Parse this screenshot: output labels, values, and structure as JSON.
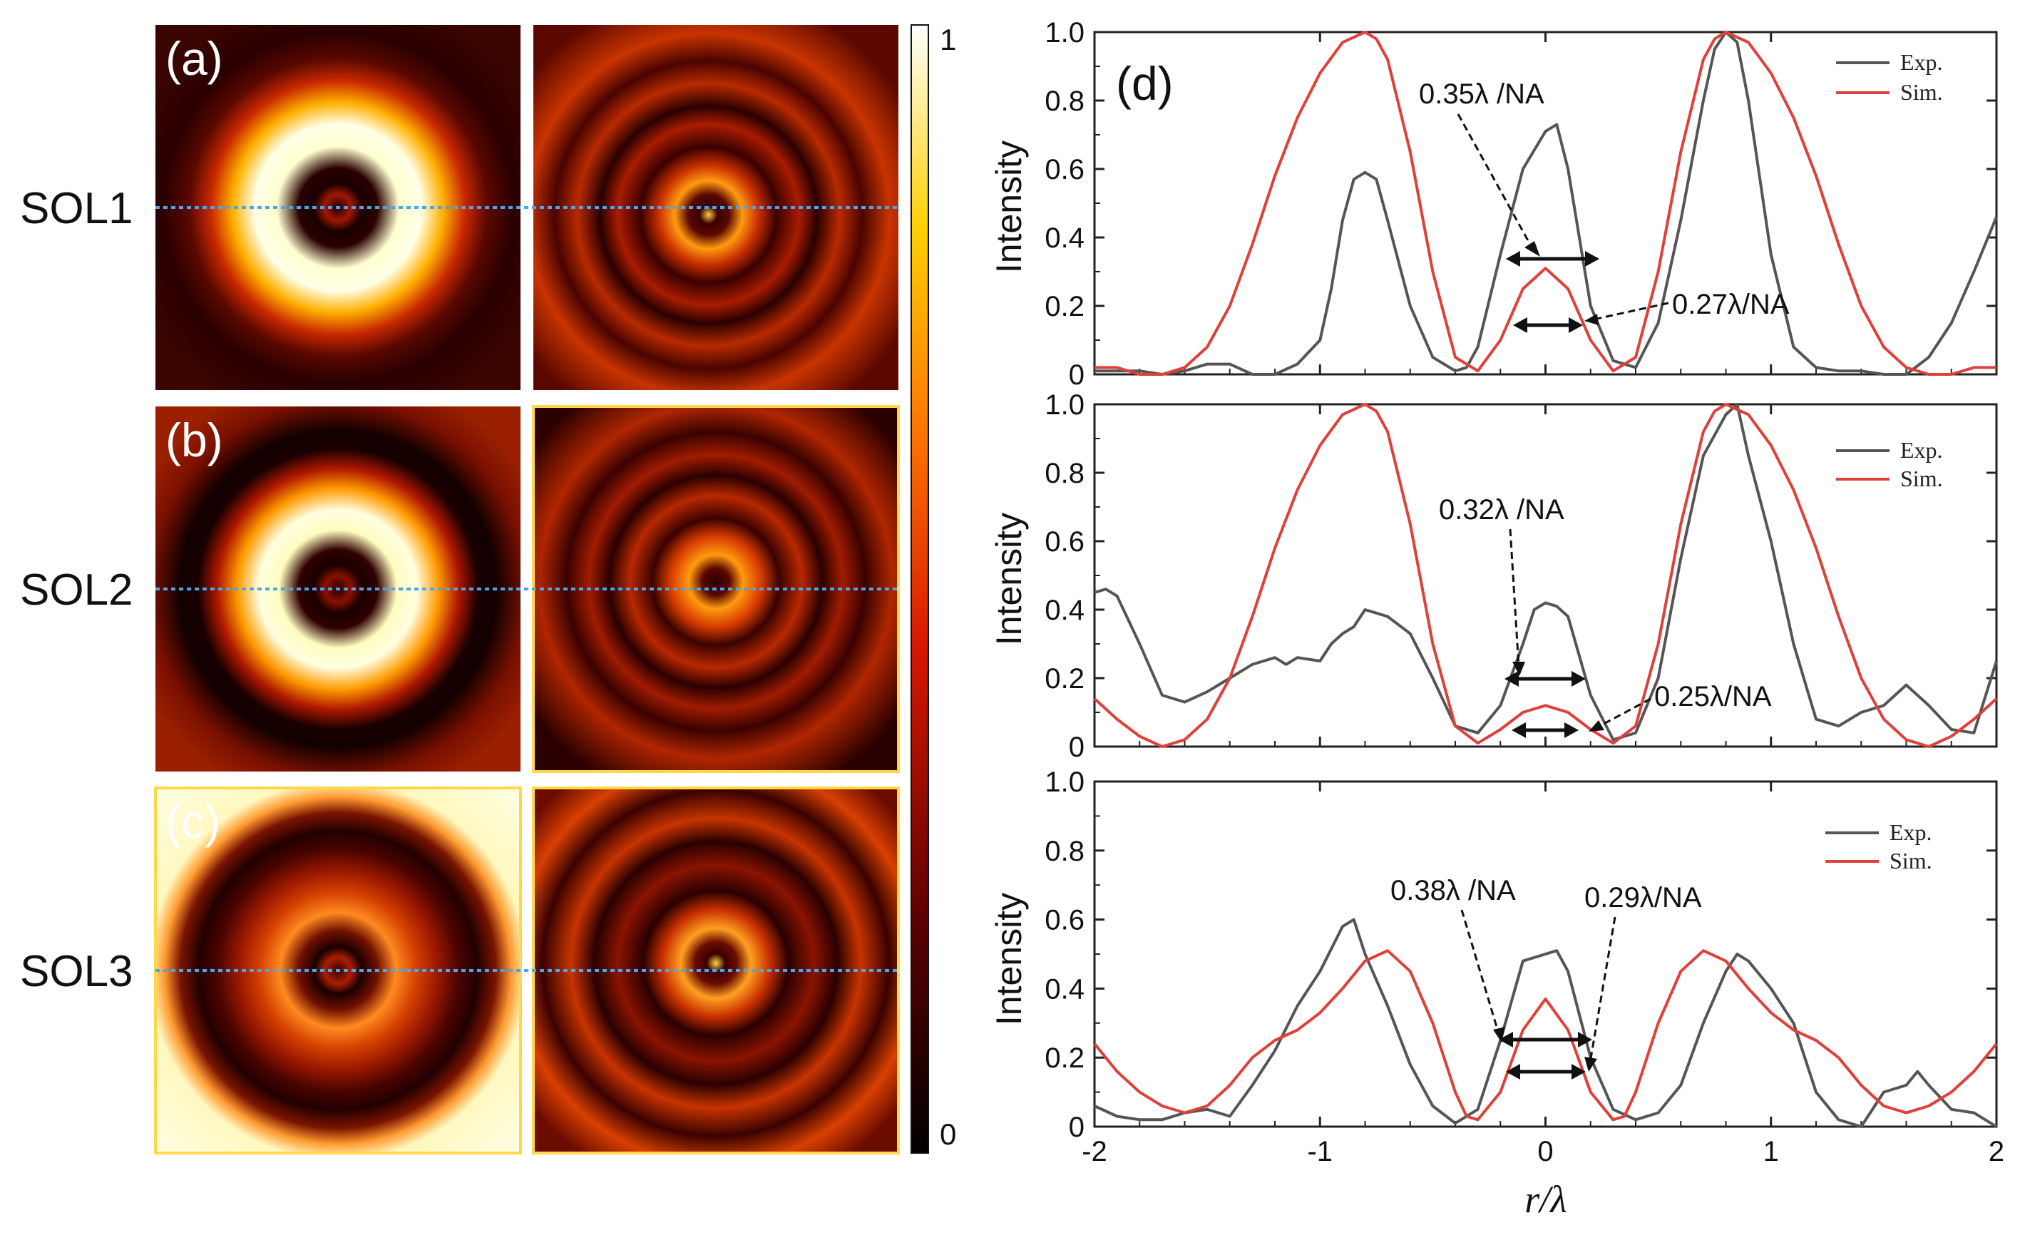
{
  "colors": {
    "exp": "#555555",
    "sim": "#e0403a",
    "guide": "#4aa6e8",
    "highlight_border": "#ffd84a"
  },
  "left_panels": {
    "rows": [
      {
        "label": "SOL1",
        "letter": "(a)"
      },
      {
        "label": "SOL2",
        "letter": "(b)"
      },
      {
        "label": "SOL3",
        "letter": "(c)"
      }
    ]
  },
  "colorbar": {
    "max_label": "1",
    "min_label": "0"
  },
  "chart_data": [
    {
      "type": "line",
      "panel": "(d)",
      "xlabel": "r/λ",
      "ylabel": "Intensity",
      "xlim": [
        -2,
        2
      ],
      "ylim": [
        0,
        1.0
      ],
      "yticks": [
        "0",
        "0.2",
        "0.4",
        "0.6",
        "0.8",
        "1.0"
      ],
      "xticks": [
        "-2",
        "-1",
        "0",
        "1",
        "2"
      ],
      "legend": [
        "Exp.",
        "Sim."
      ],
      "annotations": [
        "0.35λ /NA",
        "0.27λ/NA"
      ],
      "series": [
        {
          "name": "Exp.",
          "x": [
            -2.0,
            -1.9,
            -1.8,
            -1.7,
            -1.6,
            -1.5,
            -1.4,
            -1.3,
            -1.2,
            -1.1,
            -1.0,
            -0.95,
            -0.9,
            -0.85,
            -0.8,
            -0.75,
            -0.7,
            -0.6,
            -0.5,
            -0.4,
            -0.35,
            -0.3,
            -0.2,
            -0.1,
            0.0,
            0.05,
            0.1,
            0.2,
            0.3,
            0.4,
            0.5,
            0.6,
            0.7,
            0.75,
            0.8,
            0.85,
            0.9,
            1.0,
            1.1,
            1.2,
            1.3,
            1.4,
            1.5,
            1.6,
            1.7,
            1.8,
            1.9,
            2.0
          ],
          "y": [
            0.01,
            0.01,
            0.01,
            0.0,
            0.01,
            0.03,
            0.03,
            0.0,
            0.0,
            0.03,
            0.1,
            0.25,
            0.45,
            0.57,
            0.59,
            0.57,
            0.45,
            0.2,
            0.05,
            0.01,
            0.02,
            0.08,
            0.35,
            0.6,
            0.71,
            0.73,
            0.6,
            0.2,
            0.04,
            0.02,
            0.15,
            0.45,
            0.8,
            0.95,
            1.0,
            0.97,
            0.8,
            0.35,
            0.08,
            0.02,
            0.01,
            0.01,
            0.0,
            0.0,
            0.05,
            0.15,
            0.3,
            0.46
          ]
        },
        {
          "name": "Sim.",
          "x": [
            -2.0,
            -1.9,
            -1.8,
            -1.7,
            -1.6,
            -1.5,
            -1.4,
            -1.3,
            -1.2,
            -1.1,
            -1.0,
            -0.9,
            -0.8,
            -0.75,
            -0.7,
            -0.6,
            -0.5,
            -0.4,
            -0.3,
            -0.2,
            -0.1,
            0.0,
            0.1,
            0.2,
            0.3,
            0.4,
            0.5,
            0.6,
            0.7,
            0.75,
            0.8,
            0.9,
            1.0,
            1.1,
            1.2,
            1.3,
            1.4,
            1.5,
            1.6,
            1.7,
            1.8,
            1.9,
            2.0
          ],
          "y": [
            0.02,
            0.02,
            0.0,
            0.0,
            0.02,
            0.08,
            0.2,
            0.38,
            0.58,
            0.75,
            0.88,
            0.97,
            1.0,
            0.98,
            0.92,
            0.65,
            0.3,
            0.05,
            0.01,
            0.1,
            0.25,
            0.31,
            0.25,
            0.1,
            0.01,
            0.05,
            0.3,
            0.65,
            0.92,
            0.98,
            1.0,
            0.97,
            0.88,
            0.75,
            0.58,
            0.38,
            0.2,
            0.08,
            0.02,
            0.0,
            0.0,
            0.02,
            0.02
          ]
        }
      ]
    },
    {
      "type": "line",
      "xlabel": "r/λ",
      "ylabel": "Intensity",
      "xlim": [
        -2,
        2
      ],
      "ylim": [
        0,
        1.0
      ],
      "yticks": [
        "0",
        "0.2",
        "0.4",
        "0.6",
        "0.8",
        "1.0"
      ],
      "xticks": [
        "-2",
        "-1",
        "0",
        "1",
        "2"
      ],
      "legend": [
        "Exp.",
        "Sim."
      ],
      "annotations": [
        "0.32λ /NA",
        "0.25λ/NA"
      ],
      "series": [
        {
          "name": "Exp.",
          "x": [
            -2.0,
            -1.95,
            -1.9,
            -1.8,
            -1.7,
            -1.6,
            -1.5,
            -1.4,
            -1.3,
            -1.2,
            -1.15,
            -1.1,
            -1.0,
            -0.95,
            -0.9,
            -0.85,
            -0.8,
            -0.7,
            -0.6,
            -0.5,
            -0.4,
            -0.3,
            -0.2,
            -0.1,
            -0.05,
            0.0,
            0.05,
            0.1,
            0.2,
            0.3,
            0.4,
            0.5,
            0.6,
            0.7,
            0.8,
            0.85,
            0.9,
            1.0,
            1.1,
            1.2,
            1.3,
            1.4,
            1.5,
            1.6,
            1.7,
            1.8,
            1.9,
            2.0
          ],
          "y": [
            0.45,
            0.46,
            0.44,
            0.3,
            0.15,
            0.13,
            0.16,
            0.2,
            0.24,
            0.26,
            0.24,
            0.26,
            0.25,
            0.3,
            0.33,
            0.35,
            0.4,
            0.38,
            0.33,
            0.2,
            0.06,
            0.04,
            0.12,
            0.3,
            0.4,
            0.42,
            0.41,
            0.38,
            0.15,
            0.02,
            0.04,
            0.2,
            0.55,
            0.85,
            0.97,
            1.0,
            0.85,
            0.6,
            0.3,
            0.08,
            0.06,
            0.1,
            0.12,
            0.18,
            0.12,
            0.05,
            0.04,
            0.25
          ]
        },
        {
          "name": "Sim.",
          "x": [
            -2.0,
            -1.9,
            -1.8,
            -1.7,
            -1.6,
            -1.5,
            -1.4,
            -1.3,
            -1.2,
            -1.1,
            -1.0,
            -0.9,
            -0.8,
            -0.75,
            -0.7,
            -0.6,
            -0.5,
            -0.4,
            -0.3,
            -0.2,
            -0.1,
            0.0,
            0.1,
            0.2,
            0.3,
            0.4,
            0.5,
            0.6,
            0.7,
            0.75,
            0.8,
            0.9,
            1.0,
            1.1,
            1.2,
            1.3,
            1.4,
            1.5,
            1.6,
            1.7,
            1.8,
            1.9,
            2.0
          ],
          "y": [
            0.14,
            0.08,
            0.03,
            0.0,
            0.02,
            0.08,
            0.2,
            0.38,
            0.58,
            0.75,
            0.88,
            0.97,
            1.0,
            0.98,
            0.92,
            0.65,
            0.3,
            0.06,
            0.01,
            0.05,
            0.1,
            0.12,
            0.1,
            0.05,
            0.01,
            0.06,
            0.3,
            0.65,
            0.92,
            0.98,
            1.0,
            0.97,
            0.88,
            0.75,
            0.58,
            0.38,
            0.2,
            0.08,
            0.02,
            0.0,
            0.03,
            0.08,
            0.14
          ]
        }
      ]
    },
    {
      "type": "line",
      "xlabel": "r/λ",
      "ylabel": "Intensity",
      "xlim": [
        -2,
        2
      ],
      "ylim": [
        0,
        1.0
      ],
      "yticks": [
        "0",
        "0.2",
        "0.4",
        "0.6",
        "0.8",
        "1.0"
      ],
      "xticks": [
        "-2",
        "-1",
        "0",
        "1",
        "2"
      ],
      "legend": [
        "Exp.",
        "Sim."
      ],
      "annotations": [
        "0.38λ /NA",
        "0.29λ/NA"
      ],
      "series": [
        {
          "name": "Exp.",
          "x": [
            -2.0,
            -1.9,
            -1.8,
            -1.7,
            -1.6,
            -1.5,
            -1.4,
            -1.3,
            -1.2,
            -1.1,
            -1.0,
            -0.9,
            -0.85,
            -0.8,
            -0.7,
            -0.6,
            -0.5,
            -0.4,
            -0.3,
            -0.2,
            -0.1,
            0.0,
            0.05,
            0.1,
            0.2,
            0.3,
            0.4,
            0.5,
            0.6,
            0.7,
            0.8,
            0.85,
            0.9,
            1.0,
            1.1,
            1.2,
            1.3,
            1.4,
            1.5,
            1.6,
            1.65,
            1.7,
            1.8,
            1.9,
            2.0
          ],
          "y": [
            0.06,
            0.03,
            0.02,
            0.02,
            0.04,
            0.05,
            0.03,
            0.12,
            0.22,
            0.35,
            0.45,
            0.58,
            0.6,
            0.5,
            0.35,
            0.18,
            0.06,
            0.01,
            0.05,
            0.25,
            0.48,
            0.5,
            0.51,
            0.45,
            0.2,
            0.05,
            0.02,
            0.04,
            0.12,
            0.3,
            0.45,
            0.5,
            0.48,
            0.4,
            0.3,
            0.1,
            0.02,
            0.0,
            0.1,
            0.12,
            0.16,
            0.12,
            0.05,
            0.04,
            0.0
          ]
        },
        {
          "name": "Sim.",
          "x": [
            -2.0,
            -1.9,
            -1.8,
            -1.7,
            -1.6,
            -1.5,
            -1.4,
            -1.3,
            -1.2,
            -1.1,
            -1.0,
            -0.9,
            -0.8,
            -0.7,
            -0.6,
            -0.5,
            -0.4,
            -0.35,
            -0.3,
            -0.2,
            -0.1,
            0.0,
            0.1,
            0.2,
            0.3,
            0.35,
            0.4,
            0.5,
            0.6,
            0.7,
            0.8,
            0.9,
            1.0,
            1.1,
            1.2,
            1.3,
            1.4,
            1.5,
            1.6,
            1.7,
            1.8,
            1.9,
            2.0
          ],
          "y": [
            0.24,
            0.16,
            0.1,
            0.06,
            0.04,
            0.06,
            0.12,
            0.2,
            0.25,
            0.28,
            0.33,
            0.4,
            0.48,
            0.51,
            0.45,
            0.3,
            0.1,
            0.03,
            0.02,
            0.1,
            0.28,
            0.37,
            0.28,
            0.1,
            0.02,
            0.03,
            0.1,
            0.3,
            0.45,
            0.51,
            0.48,
            0.4,
            0.33,
            0.28,
            0.25,
            0.2,
            0.12,
            0.06,
            0.04,
            0.06,
            0.1,
            0.16,
            0.24
          ]
        }
      ]
    }
  ]
}
